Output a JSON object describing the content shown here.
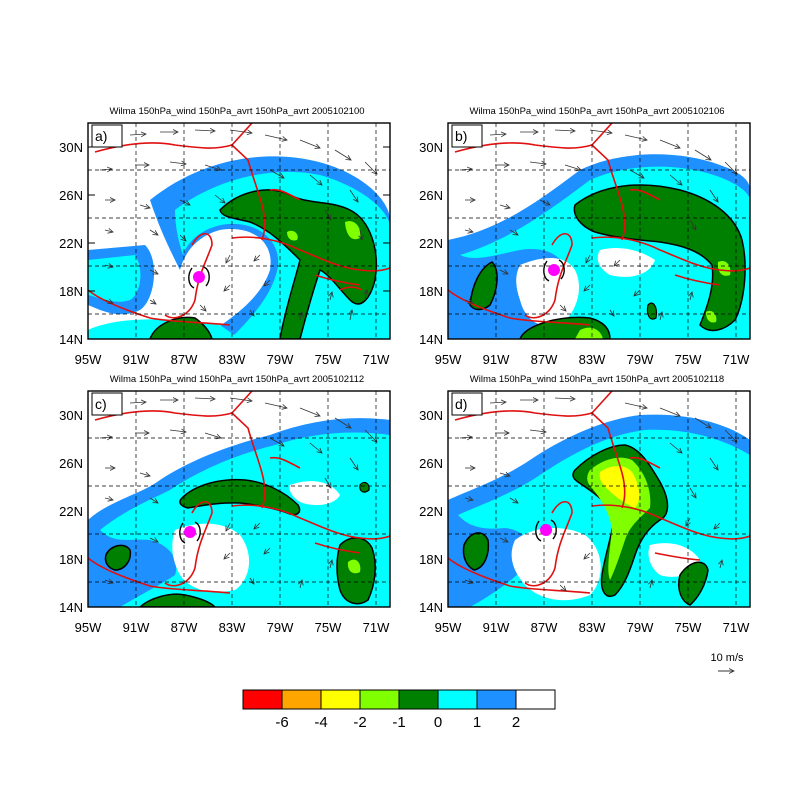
{
  "panels": [
    {
      "label": "a)",
      "title": "Wilma 150hPa_wind 150hPa_avrt 150hPa_avrt 2005102100"
    },
    {
      "label": "b)",
      "title": "Wilma 150hPa_wind 150hPa_avrt 150hPa_avrt 2005102106"
    },
    {
      "label": "c)",
      "title": "Wilma 150hPa_wind 150hPa_avrt 150hPa_avrt 2005102112"
    },
    {
      "label": "d)",
      "title": "Wilma 150hPa_wind 150hPa_avrt 150hPa_avrt 2005102118"
    }
  ],
  "lat_ticks": [
    "30N",
    "26N",
    "22N",
    "18N",
    "14N"
  ],
  "lon_ticks": [
    "95W",
    "91W",
    "87W",
    "83W",
    "79W",
    "75W",
    "71W"
  ],
  "map_extent": {
    "lon_min": -95,
    "lon_max": -70,
    "lat_min": 14,
    "lat_max": 32
  },
  "vector_reference": {
    "label": "10 m/s"
  },
  "colorbar": {
    "colors": [
      "#ff0000",
      "#ffa500",
      "#ffff00",
      "#7fff00",
      "#008000",
      "#00ffff",
      "#1e90ff",
      "#ffffff"
    ],
    "labels": [
      "-6",
      "-4",
      "-2",
      "-1",
      "0",
      "1",
      "2"
    ]
  },
  "colors": {
    "coast": "#e01010",
    "storm": "#ff00ff",
    "frame": "#000000"
  }
}
